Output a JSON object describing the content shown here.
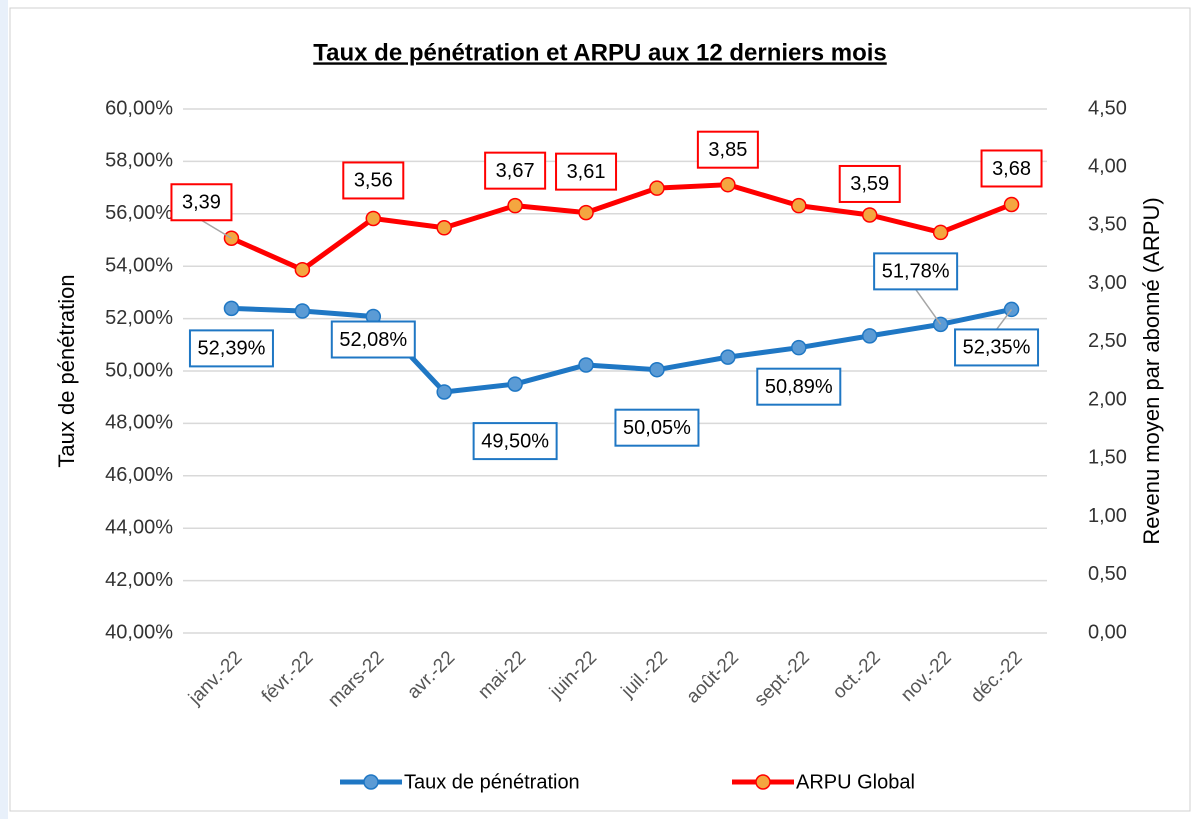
{
  "chart_data": {
    "type": "line",
    "title": "Taux de pénétration et ARPU aux 12 derniers mois",
    "y_label": "Taux de pénétration",
    "y2_label": "Revenu moyen par abonné (ARPU)",
    "categories": [
      "janv.-22",
      "févr.-22",
      "mars-22",
      "avr.-22",
      "mai-22",
      "juin-22",
      "juil.-22",
      "août-22",
      "sept.-22",
      "oct.-22",
      "nov.-22",
      "déc.-22"
    ],
    "series": [
      {
        "name": "Taux de pénétration",
        "color": "#1f77c4",
        "marker_color": "#5b9bd5",
        "values": [
          52.39,
          52.29,
          52.08,
          49.2,
          49.5,
          50.23,
          50.05,
          50.53,
          50.89,
          51.34,
          51.78,
          52.35
        ],
        "value_labels": [
          "52,39%",
          null,
          "52,08%",
          null,
          "49,50%",
          null,
          "50,05%",
          null,
          "50,89%",
          null,
          "51,78%",
          "52,35%"
        ]
      },
      {
        "name": "ARPU Global",
        "color": "#ff0000",
        "marker_color": "#f4a640",
        "axis": "y2",
        "values": [
          3.39,
          3.12,
          3.56,
          3.48,
          3.67,
          3.61,
          3.82,
          3.85,
          3.67,
          3.59,
          3.44,
          3.68
        ],
        "value_labels": [
          "3,39",
          null,
          "3,56",
          null,
          "3,67",
          "3,61",
          null,
          "3,85",
          null,
          "3,59",
          null,
          "3,68"
        ]
      }
    ],
    "ylim": [
      40,
      60
    ],
    "yticks": [
      {
        "value": 40,
        "label": "40,00%"
      },
      {
        "value": 42,
        "label": "42,00%"
      },
      {
        "value": 44,
        "label": "44,00%"
      },
      {
        "value": 46,
        "label": "46,00%"
      },
      {
        "value": 48,
        "label": "48,00%"
      },
      {
        "value": 50,
        "label": "50,00%"
      },
      {
        "value": 52,
        "label": "52,00%"
      },
      {
        "value": 54,
        "label": "54,00%"
      },
      {
        "value": 56,
        "label": "56,00%"
      },
      {
        "value": 58,
        "label": "58,00%"
      },
      {
        "value": 60,
        "label": "60,00%"
      }
    ],
    "y2lim": [
      0,
      4.5
    ],
    "y2ticks": [
      {
        "value": 0,
        "label": "0,00"
      },
      {
        "value": 0.5,
        "label": "0,50"
      },
      {
        "value": 1,
        "label": "1,00"
      },
      {
        "value": 1.5,
        "label": "1,50"
      },
      {
        "value": 2,
        "label": "2,00"
      },
      {
        "value": 2.5,
        "label": "2,50"
      },
      {
        "value": 3,
        "label": "3,00"
      },
      {
        "value": 3.5,
        "label": "3,50"
      },
      {
        "value": 4,
        "label": "4,00"
      },
      {
        "value": 4.5,
        "label": "4,50"
      }
    ],
    "grid": true,
    "legend": "bottom"
  }
}
